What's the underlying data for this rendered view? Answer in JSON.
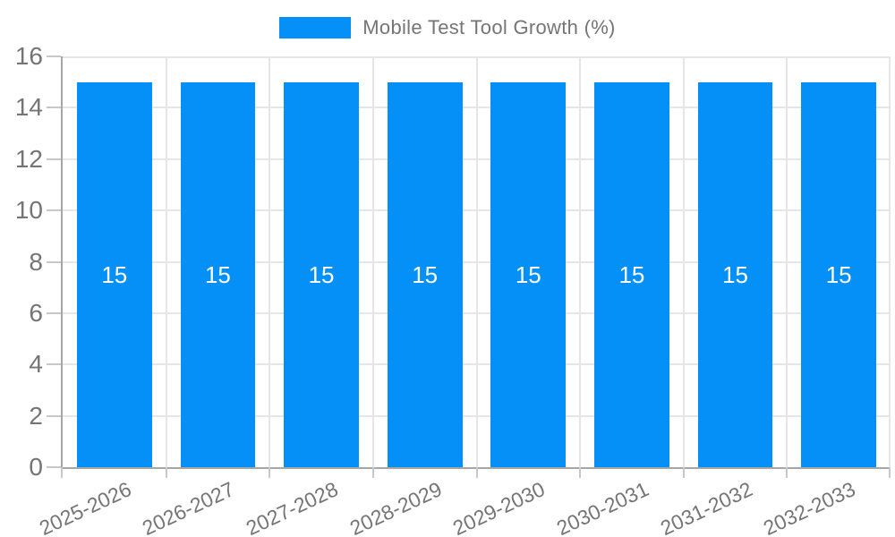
{
  "chart_data": {
    "type": "bar",
    "title": "",
    "legend": {
      "label": "Mobile Test Tool Growth (%)",
      "position": "top"
    },
    "categories": [
      "2025-2026",
      "2026-2027",
      "2027-2028",
      "2028-2029",
      "2029-2030",
      "2030-2031",
      "2031-2032",
      "2032-2033"
    ],
    "values": [
      15,
      15,
      15,
      15,
      15,
      15,
      15,
      15
    ],
    "bar_labels": [
      "15",
      "15",
      "15",
      "15",
      "15",
      "15",
      "15",
      "15"
    ],
    "xlabel": "",
    "ylabel": "",
    "ylim": [
      0,
      16
    ],
    "yticks": [
      0,
      2,
      4,
      6,
      8,
      10,
      12,
      14,
      16
    ],
    "grid": "on",
    "x_label_rotation_deg": -25,
    "colors": {
      "bar": "#0590f8",
      "bar_value_label": "#ffffff",
      "grid": "#e6e6e6",
      "axis": "#a6a6a6",
      "tick": "#c8c8c8",
      "text": "#757575"
    }
  }
}
